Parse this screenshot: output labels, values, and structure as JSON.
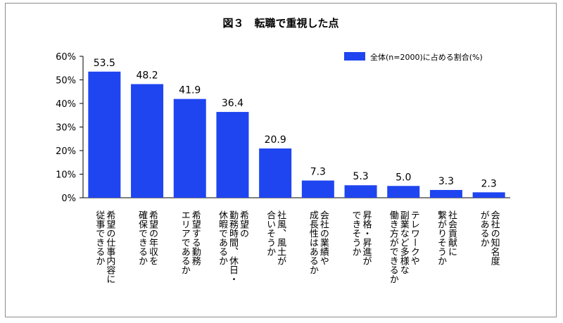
{
  "chart_data": {
    "type": "bar",
    "title": "図３　転職で重視した点",
    "legend": {
      "label": "全体(n=2000)に占める割合(%)",
      "placement": "top-right"
    },
    "ylim": [
      0,
      60
    ],
    "yticks": [
      "0%",
      "10%",
      "20%",
      "30%",
      "40%",
      "50%",
      "60%"
    ],
    "ytick_values": [
      0,
      10,
      20,
      30,
      40,
      50,
      60
    ],
    "bar_color": "#1f45f0",
    "categories": [
      [
        "希望の仕事内容に",
        "従事できるか"
      ],
      [
        "希望の年収を",
        "確保できるか"
      ],
      [
        "希望する勤務",
        "エリアであるか"
      ],
      [
        "希望の",
        "勤務時間、休日・",
        "休暇であるか"
      ],
      [
        "社風、風土が",
        "合いそうか"
      ],
      [
        "会社の業績や",
        "成長性はあるか"
      ],
      [
        "昇格・昇進が",
        "できそうか"
      ],
      [
        "テレワークや",
        "副業など多様な",
        "働き方ができるか"
      ],
      [
        "社会貢献に",
        "繋がりそうか"
      ],
      [
        "会社の知名度",
        "があるか"
      ]
    ],
    "values": [
      53.5,
      48.2,
      41.9,
      36.4,
      20.9,
      7.3,
      5.3,
      5.0,
      3.3,
      2.3
    ],
    "value_labels": [
      "53.5",
      "48.2",
      "41.9",
      "36.4",
      "20.9",
      "7.3",
      "5.3",
      "5.0",
      "3.3",
      "2.3"
    ]
  }
}
